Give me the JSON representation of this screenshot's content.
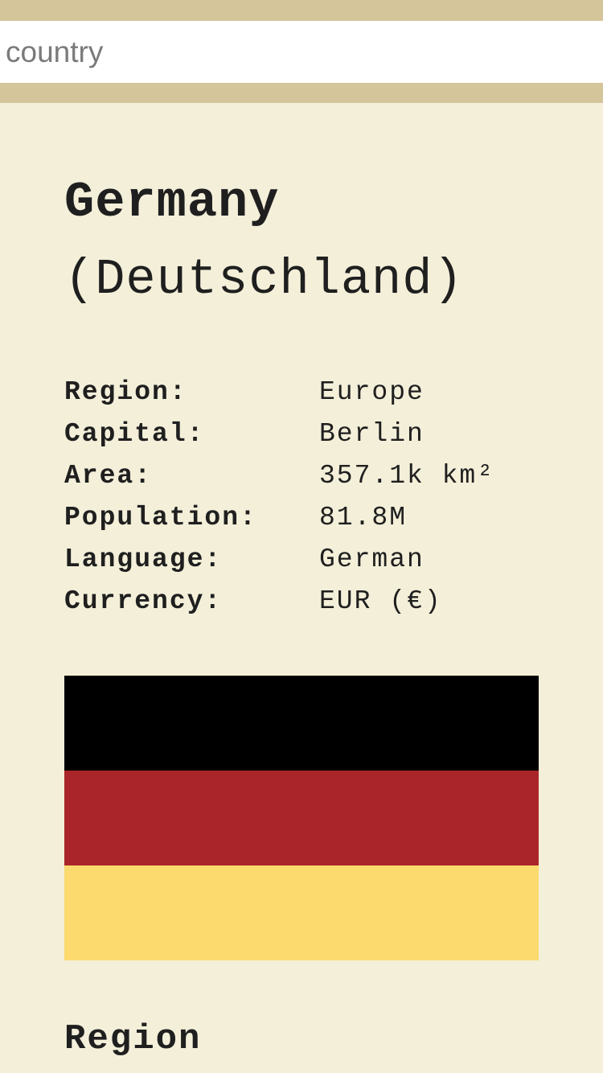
{
  "search": {
    "placeholder": "country",
    "value": ""
  },
  "country": {
    "name": "Germany",
    "native_name": "(Deutschland)"
  },
  "facts": [
    {
      "label": "Region:",
      "value": "Europe"
    },
    {
      "label": "Capital:",
      "value": "Berlin"
    },
    {
      "label": "Area:",
      "value": "357.1k km²"
    },
    {
      "label": "Population:",
      "value": "81.8M"
    },
    {
      "label": "Language:",
      "value": "German"
    },
    {
      "label": "Currency:",
      "value": "EUR (€)"
    }
  ],
  "flag": {
    "name": "flag-of-germany",
    "stripes": [
      "#000000",
      "#aa2529",
      "#fdda6e"
    ]
  },
  "sections": {
    "region_heading": "Region"
  },
  "colors": {
    "background": "#f3efd9",
    "search_bar": "#d5c59b",
    "text": "#1f1f1f"
  }
}
